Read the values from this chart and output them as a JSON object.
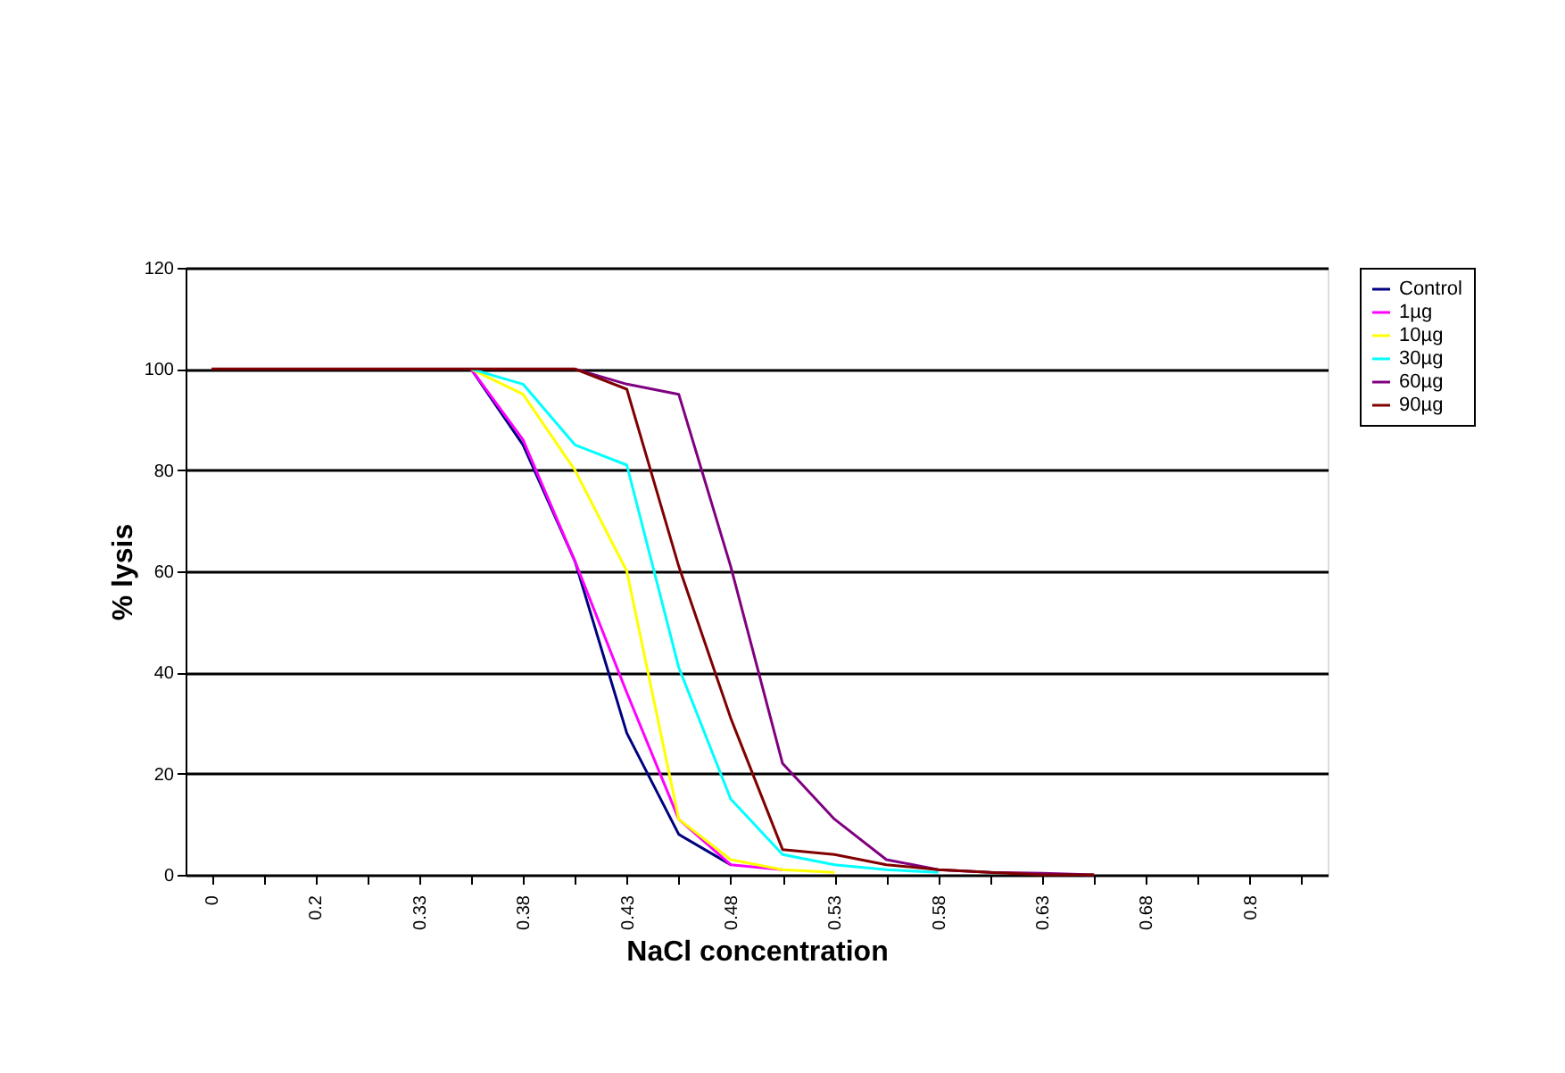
{
  "chart_data": {
    "type": "line",
    "xlabel": "NaCl concentration",
    "ylabel": "% lysis",
    "categories": [
      "0",
      null,
      "0.2",
      null,
      "0.33",
      null,
      "0.38",
      null,
      "0.43",
      null,
      "0.48",
      null,
      "0.53",
      null,
      "0.58",
      null,
      "0.63",
      null,
      "0.68",
      null,
      "0.8",
      null
    ],
    "series": [
      {
        "name": "Control",
        "color": "#000080",
        "values": [
          null,
          null,
          null,
          null,
          null,
          100,
          85,
          62,
          28,
          8,
          2,
          null,
          null,
          null,
          null,
          null,
          null,
          null,
          null,
          null,
          null,
          null
        ]
      },
      {
        "name": "1µg",
        "color": "#ff00ff",
        "values": [
          null,
          null,
          null,
          null,
          null,
          100,
          86,
          62,
          36,
          11,
          2,
          1,
          null,
          null,
          null,
          null,
          null,
          null,
          null,
          null,
          null,
          null
        ]
      },
      {
        "name": "10µg",
        "color": "#ffff00",
        "values": [
          null,
          null,
          null,
          null,
          null,
          100,
          95,
          80,
          60,
          11,
          3,
          1,
          0.5,
          null,
          null,
          null,
          null,
          null,
          null,
          null,
          null,
          null
        ]
      },
      {
        "name": "30µg",
        "color": "#00ffff",
        "values": [
          null,
          null,
          null,
          null,
          null,
          100,
          97,
          85,
          81,
          41,
          15,
          4,
          2,
          1,
          0.5,
          null,
          null,
          null,
          null,
          null,
          null,
          null
        ]
      },
      {
        "name": "60µg",
        "color": "#800080",
        "values": [
          null,
          null,
          null,
          null,
          null,
          null,
          null,
          100,
          97,
          95,
          61,
          22,
          11,
          3,
          1,
          0.5,
          0.3,
          0,
          null,
          null,
          null,
          null
        ]
      },
      {
        "name": "90µg",
        "color": "#800000",
        "values": [
          100,
          100,
          100,
          100,
          100,
          100,
          100,
          100,
          96,
          61,
          31,
          5,
          4,
          2,
          1,
          0.5,
          0,
          0,
          null,
          null,
          null,
          null
        ]
      }
    ],
    "ylim": [
      0,
      120
    ],
    "yticks": [
      0,
      20,
      40,
      60,
      80,
      100,
      120
    ],
    "grid": "y",
    "legend": "right"
  }
}
